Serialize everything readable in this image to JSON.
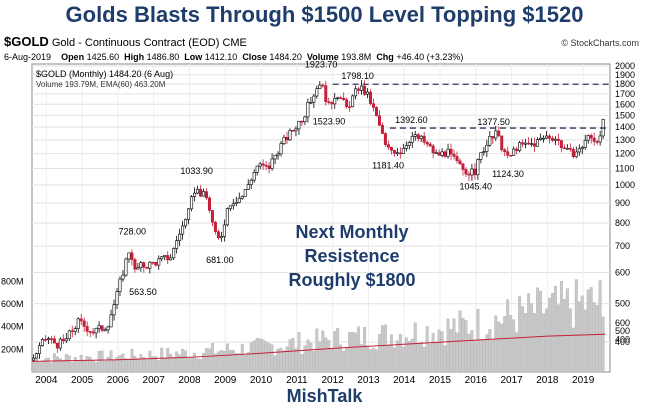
{
  "headline": "Golds Blasts Through $1500 Level Topping $1520",
  "header": {
    "symbol": "$GOLD",
    "description": "Gold - Continuous Contract (EOD)",
    "exchange": "CME",
    "source": "© StockCharts.com",
    "date": "6-Aug-2019",
    "open_label": "Open",
    "open": "1425.60",
    "high_label": "High",
    "high": "1486.80",
    "low_label": "Low",
    "low": "1412.10",
    "close_label": "Close",
    "close": "1484.20",
    "volume_label": "Volume",
    "volume": "193.8M",
    "chg_label": "Chg",
    "chg": "+46.40 (+3.23%)"
  },
  "legend": {
    "price": "$GOLD (Monthly) 1484.20 (6 Aug)",
    "volume": "Volume 193.79M, EMA(60) 463.20M"
  },
  "annotation": {
    "line1": "Next Monthly",
    "line2": "Resistence",
    "line3": "Roughly $1800"
  },
  "footer": "MishTalk",
  "colors": {
    "up": "#000000",
    "down": "#c41e3a",
    "resistance": "#33335a",
    "volume_ema": "#c41e3a",
    "title": "#1f3d6b"
  },
  "chart_data": {
    "type": "candlestick",
    "scale": "log",
    "ylim": [
      400,
      2000
    ],
    "yticks": [
      400,
      500,
      600,
      700,
      800,
      900,
      1000,
      1100,
      1200,
      1300,
      1400,
      1500,
      1600,
      1700,
      1800,
      1900,
      2000
    ],
    "xlim": [
      2003.6,
      2019.75
    ],
    "xticks": [
      2004,
      2005,
      2006,
      2007,
      2008,
      2009,
      2010,
      2011,
      2012,
      2013,
      2014,
      2015,
      2016,
      2017,
      2018,
      2019
    ],
    "price_path": [
      [
        2003.6,
        360
      ],
      [
        2004.0,
        410
      ],
      [
        2004.3,
        395
      ],
      [
        2004.5,
        400
      ],
      [
        2004.9,
        450
      ],
      [
        2005.3,
        425
      ],
      [
        2005.7,
        440
      ],
      [
        2005.95,
        515
      ],
      [
        2006.35,
        700
      ],
      [
        2006.45,
        600
      ],
      [
        2006.6,
        620
      ],
      [
        2006.9,
        630
      ],
      [
        2007.5,
        660
      ],
      [
        2007.7,
        750
      ],
      [
        2007.95,
        830
      ],
      [
        2008.15,
        980
      ],
      [
        2008.5,
        920
      ],
      [
        2008.7,
        750
      ],
      [
        2008.85,
        720
      ],
      [
        2009.1,
        900
      ],
      [
        2009.5,
        940
      ],
      [
        2009.9,
        1120
      ],
      [
        2010.2,
        1100
      ],
      [
        2010.5,
        1240
      ],
      [
        2010.9,
        1380
      ],
      [
        2011.2,
        1500
      ],
      [
        2011.65,
        1830
      ],
      [
        2011.9,
        1570
      ],
      [
        2012.1,
        1720
      ],
      [
        2012.4,
        1560
      ],
      [
        2012.75,
        1780
      ],
      [
        2013.0,
        1670
      ],
      [
        2013.3,
        1420
      ],
      [
        2013.5,
        1230
      ],
      [
        2013.9,
        1220
      ],
      [
        2014.2,
        1330
      ],
      [
        2014.5,
        1300
      ],
      [
        2014.9,
        1190
      ],
      [
        2015.2,
        1210
      ],
      [
        2015.6,
        1100
      ],
      [
        2015.95,
        1065
      ],
      [
        2016.2,
        1230
      ],
      [
        2016.55,
        1350
      ],
      [
        2016.9,
        1160
      ],
      [
        2017.15,
        1250
      ],
      [
        2017.6,
        1270
      ],
      [
        2018.0,
        1330
      ],
      [
        2018.2,
        1320
      ],
      [
        2018.6,
        1200
      ],
      [
        2018.9,
        1220
      ],
      [
        2019.1,
        1320
      ],
      [
        2019.4,
        1300
      ],
      [
        2019.62,
        1485
      ]
    ],
    "labels": [
      {
        "x": 2006.4,
        "value": 728.0,
        "text": "728.00",
        "pos": "above"
      },
      {
        "x": 2006.7,
        "value": 563.5,
        "text": "563.50",
        "pos": "below"
      },
      {
        "x": 2008.2,
        "value": 1033.9,
        "text": "1033.90",
        "pos": "above"
      },
      {
        "x": 2008.85,
        "value": 681.0,
        "text": "681.00",
        "pos": "below"
      },
      {
        "x": 2011.68,
        "value": 1923.7,
        "text": "1923.70",
        "pos": "above"
      },
      {
        "x": 2011.9,
        "value": 1523.9,
        "text": "1523.90",
        "pos": "below"
      },
      {
        "x": 2012.7,
        "value": 1798.1,
        "text": "1798.10",
        "pos": "above"
      },
      {
        "x": 2013.55,
        "value": 1181.4,
        "text": "1181.40",
        "pos": "below"
      },
      {
        "x": 2014.2,
        "value": 1392.6,
        "text": "1392.60",
        "pos": "above"
      },
      {
        "x": 2016.0,
        "value": 1045.4,
        "text": "1045.40",
        "pos": "below"
      },
      {
        "x": 2016.5,
        "value": 1377.5,
        "text": "1377.50",
        "pos": "above"
      },
      {
        "x": 2016.9,
        "value": 1124.3,
        "text": "1124.30",
        "pos": "below"
      }
    ],
    "resistance_lines": [
      {
        "value": 1798.1,
        "x_start": 2012.0,
        "x_end": 2019.75
      },
      {
        "value": 1392.6,
        "x_start": 2013.6,
        "x_end": 2019.75
      }
    ],
    "volume": {
      "ylim": [
        0,
        900
      ],
      "yticks": [
        200,
        400,
        600,
        800
      ],
      "ytick_labels": [
        "200M",
        "400M",
        "600M",
        "800M"
      ],
      "path": [
        [
          2003.6,
          120
        ],
        [
          2006.0,
          140
        ],
        [
          2008.0,
          170
        ],
        [
          2010.0,
          220
        ],
        [
          2012.0,
          290
        ],
        [
          2014.0,
          340
        ],
        [
          2016.0,
          420
        ],
        [
          2018.0,
          560
        ],
        [
          2019.5,
          620
        ],
        [
          2019.62,
          193.79
        ]
      ],
      "ema_path": [
        [
          2003.6,
          130
        ],
        [
          2006.0,
          150
        ],
        [
          2008.0,
          180
        ],
        [
          2010.0,
          230
        ],
        [
          2012.0,
          290
        ],
        [
          2014.0,
          340
        ],
        [
          2016.0,
          390
        ],
        [
          2018.0,
          440
        ],
        [
          2019.62,
          463.2
        ]
      ],
      "overlay_ticks": [
        400,
        500,
        600
      ],
      "ema_last": "463.20M"
    }
  }
}
